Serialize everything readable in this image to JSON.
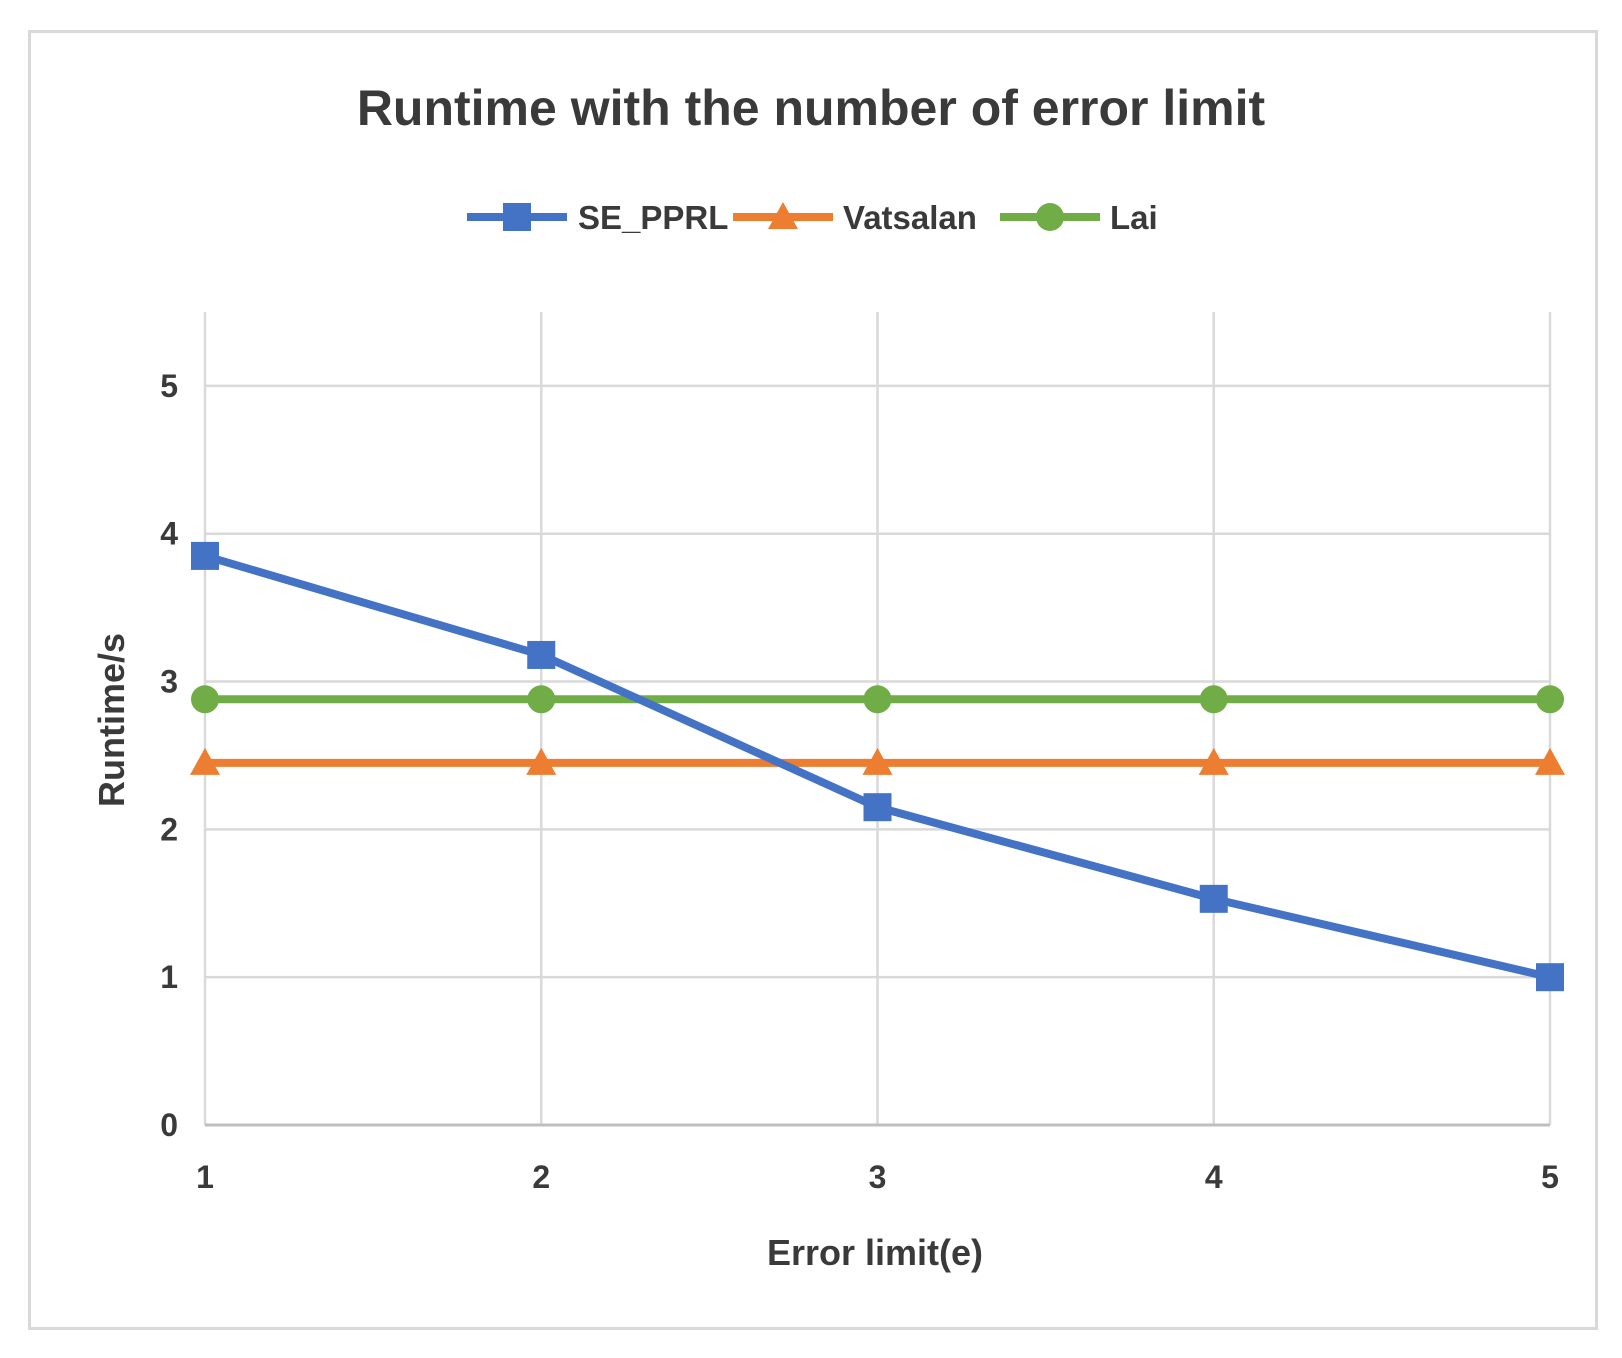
{
  "chart_data": {
    "type": "line",
    "title": "Runtime with the number of error limit",
    "xlabel": "Error limit(e)",
    "ylabel": "Runtime/s",
    "x": [
      1,
      2,
      3,
      4,
      5
    ],
    "xlim": [
      1,
      5
    ],
    "ylim": [
      0,
      5.5
    ],
    "xticks": [
      "1",
      "2",
      "3",
      "4",
      "5"
    ],
    "yticks": [
      "0",
      "1",
      "2",
      "3",
      "4",
      "5"
    ],
    "grid": true,
    "legend_position": "top",
    "series": [
      {
        "name": "SE_PPRL",
        "values": [
          3.85,
          3.18,
          2.15,
          1.53,
          1.0
        ],
        "color": "#4472c4",
        "marker": "square"
      },
      {
        "name": "Vatsalan",
        "values": [
          2.45,
          2.45,
          2.45,
          2.45,
          2.45
        ],
        "color": "#ed7d31",
        "marker": "triangle"
      },
      {
        "name": "Lai",
        "values": [
          2.88,
          2.88,
          2.88,
          2.88,
          2.88
        ],
        "color": "#70ad47",
        "marker": "circle"
      }
    ]
  }
}
